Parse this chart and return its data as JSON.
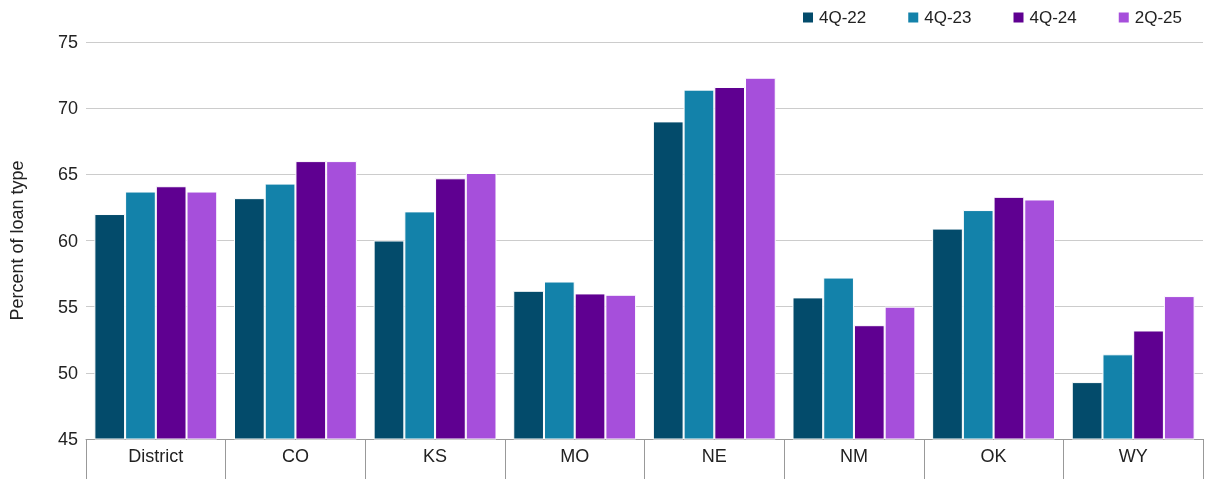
{
  "chart_data": {
    "type": "bar",
    "ylabel": "Percent of loan type",
    "categories": [
      "District",
      "CO",
      "KS",
      "MO",
      "NE",
      "NM",
      "OK",
      "WY"
    ],
    "series": [
      {
        "name": "4Q-22",
        "color": "#034b6b",
        "values": [
          62.0,
          63.2,
          60.0,
          56.2,
          69.0,
          55.7,
          60.9,
          49.3
        ]
      },
      {
        "name": "4Q-23",
        "color": "#1382aa",
        "values": [
          63.7,
          64.3,
          62.2,
          56.9,
          71.4,
          57.2,
          62.3,
          51.4
        ]
      },
      {
        "name": "4Q-24",
        "color": "#5f0091",
        "values": [
          64.1,
          66.0,
          64.7,
          56.0,
          71.6,
          53.6,
          63.3,
          53.2
        ]
      },
      {
        "name": "2Q-25",
        "color": "#a64fdb",
        "values": [
          63.7,
          66.0,
          65.1,
          55.9,
          72.3,
          55.0,
          63.1,
          55.8
        ]
      }
    ],
    "ylim": [
      45,
      75
    ],
    "yticks": [
      45,
      50,
      55,
      60,
      65,
      70,
      75
    ],
    "grid": "y",
    "legend": "top right"
  }
}
